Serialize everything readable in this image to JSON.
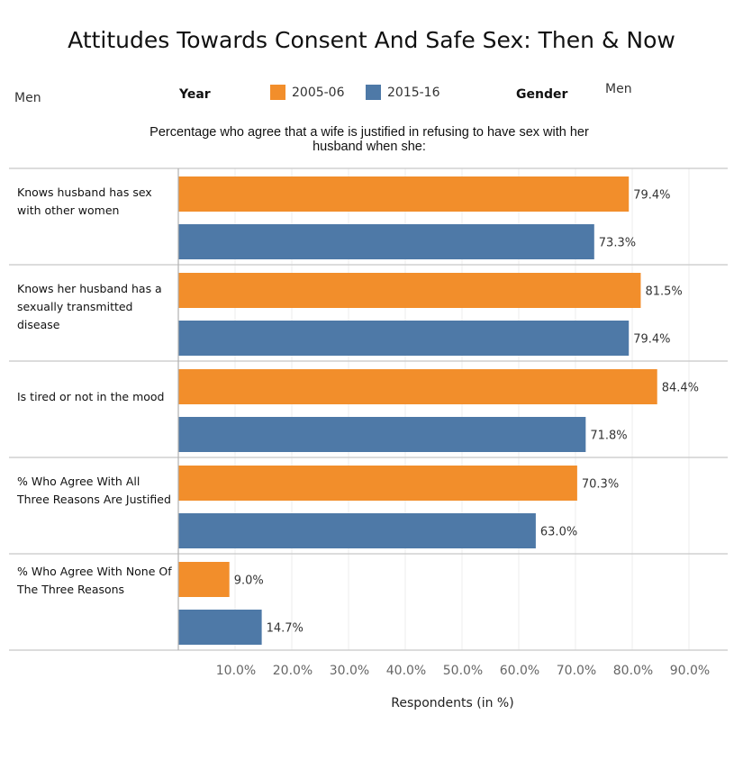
{
  "chart_data": {
    "type": "bar",
    "orientation": "horizontal",
    "title": "Attitudes Towards Consent And Safe Sex: Then & Now",
    "subtitle": "Percentage who agree that a wife is justified in refusing to have sex with her husband when she:",
    "categories": [
      "Knows husband has sex with other women",
      "Knows her husband has a sexually transmitted disease",
      "Is tired or not in the mood",
      "% Who Agree With All Three Reasons Are Justified",
      "% Who Agree With None Of The Three Reasons"
    ],
    "series": [
      {
        "name": "2005-06",
        "color": "#F28E2B",
        "values": [
          79.4,
          81.5,
          84.4,
          70.3,
          9.0
        ],
        "labels": [
          "79.4%",
          "81.5%",
          "84.4%",
          "70.3%",
          "9.0%"
        ]
      },
      {
        "name": "2015-16",
        "color": "#4E79A7",
        "values": [
          73.3,
          79.4,
          71.8,
          63.0,
          14.7
        ],
        "labels": [
          "73.3%",
          "79.4%",
          "71.8%",
          "63.0%",
          "14.7%"
        ]
      }
    ],
    "xlabel": "Respondents (in %)",
    "xlim": [
      0,
      97
    ],
    "xticks": [
      10,
      20,
      30,
      40,
      50,
      60,
      70,
      80,
      90
    ],
    "xtick_labels": [
      "10.0%",
      "20.0%",
      "30.0%",
      "40.0%",
      "50.0%",
      "60.0%",
      "70.0%",
      "80.0%",
      "90.0%"
    ]
  },
  "filters": {
    "gender_left": "Men",
    "year_label": "Year",
    "gender_label": "Gender",
    "gender_right": "Men"
  },
  "legend": [
    "2005-06",
    "2015-16"
  ]
}
